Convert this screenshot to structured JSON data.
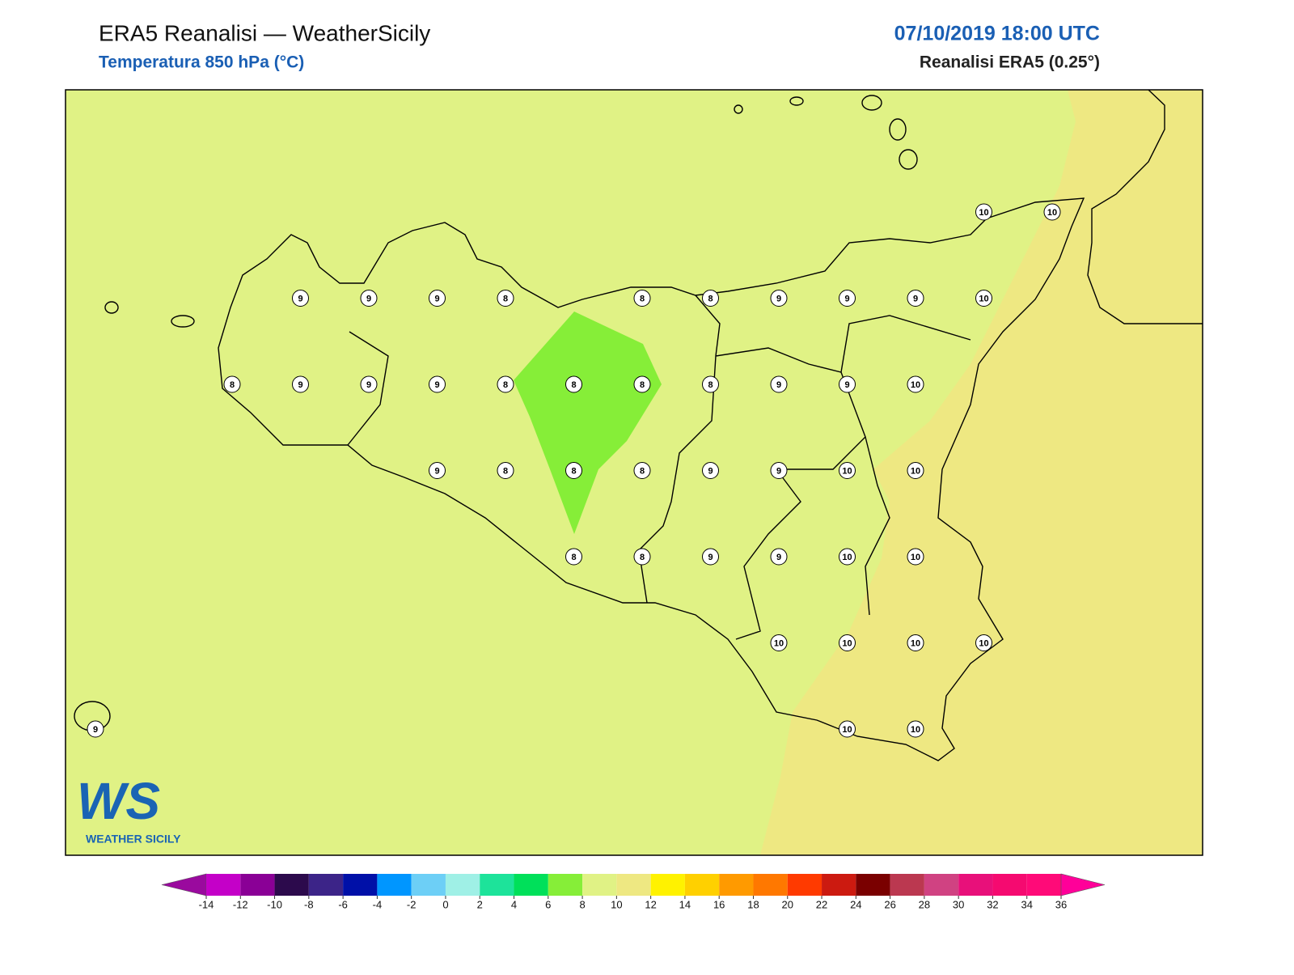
{
  "header": {
    "title": "ERA5 Reanalisi — WeatherSicily",
    "subtitle": "Temperatura 850 hPa (°C)",
    "datetime": "07/10/2019 18:00 UTC",
    "source": "Reanalisi ERA5 (0.25°)"
  },
  "map": {
    "grid": [
      [
        null,
        null,
        null,
        null,
        null,
        null,
        null,
        null,
        null,
        null,
        null,
        null,
        null,
        10,
        10
      ],
      [
        null,
        null,
        null,
        9,
        9,
        9,
        8,
        null,
        8,
        8,
        9,
        9,
        9,
        10,
        null
      ],
      [
        null,
        null,
        8,
        9,
        9,
        9,
        8,
        8,
        8,
        8,
        9,
        9,
        10,
        null,
        null
      ],
      [
        null,
        null,
        null,
        null,
        null,
        9,
        8,
        8,
        8,
        9,
        9,
        10,
        10,
        null,
        null
      ],
      [
        null,
        null,
        null,
        null,
        null,
        null,
        null,
        8,
        8,
        9,
        9,
        10,
        10,
        null,
        null
      ],
      [
        null,
        null,
        null,
        null,
        null,
        null,
        null,
        null,
        null,
        null,
        10,
        10,
        10,
        10,
        null
      ],
      [
        9,
        null,
        null,
        null,
        null,
        null,
        null,
        null,
        null,
        null,
        null,
        10,
        10,
        null,
        null
      ]
    ]
  },
  "colorbar": {
    "ticks": [
      -14,
      -12,
      -10,
      -8,
      -6,
      -4,
      -2,
      0,
      2,
      4,
      6,
      8,
      10,
      12,
      14,
      16,
      18,
      20,
      22,
      24,
      26,
      28,
      30,
      32,
      34,
      36
    ],
    "colors": [
      "#9a0a9e",
      "#c400c8",
      "#8a0096",
      "#2c0a4c",
      "#3c2488",
      "#0010a8",
      "#0096ff",
      "#6dcff6",
      "#9ff0e6",
      "#1de39a",
      "#00e05a",
      "#86ee38",
      "#e0f285",
      "#eee882",
      "#fff200",
      "#ffd000",
      "#ff9a00",
      "#ff7800",
      "#ff3a00",
      "#cc1a10",
      "#7a0000",
      "#bb3850",
      "#d04282",
      "#e8107a",
      "#f50a70",
      "#ff0a78",
      "#ff0099"
    ]
  },
  "logo": {
    "mark": "WS",
    "text": "WEATHER SICILY"
  }
}
